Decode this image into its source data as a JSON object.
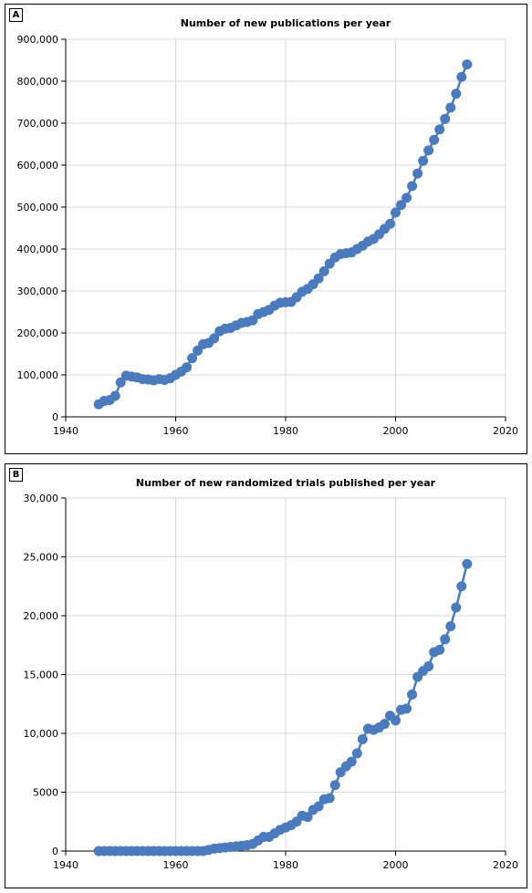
{
  "chart_data": [
    {
      "panel_label": "A",
      "type": "line",
      "title": "Number of new publications per year",
      "xlabel": "",
      "ylabel": "",
      "xlim": [
        1940,
        2020
      ],
      "ylim": [
        0,
        900000
      ],
      "x_ticks": [
        "1940",
        "1960",
        "1980",
        "2000",
        "2020"
      ],
      "y_ticks": [
        "0",
        "100,000",
        "200,000",
        "300,000",
        "400,000",
        "500,000",
        "600,000",
        "700,000",
        "800,000",
        "900,000"
      ],
      "grid": true,
      "legend": "none",
      "color": "#4a7bbf",
      "series": [
        {
          "x": [
            1946,
            1947,
            1948,
            1949,
            1950,
            1951,
            1952,
            1953,
            1954,
            1955,
            1956,
            1957,
            1958,
            1959,
            1960,
            1961,
            1962,
            1963,
            1964,
            1965,
            1966,
            1967,
            1968,
            1969,
            1970,
            1971,
            1972,
            1973,
            1974,
            1975,
            1976,
            1977,
            1978,
            1979,
            1980,
            1981,
            1982,
            1983,
            1984,
            1985,
            1986,
            1987,
            1988,
            1989,
            1990,
            1991,
            1992,
            1993,
            1994,
            1995,
            1996,
            1997,
            1998,
            1999,
            2000,
            2001,
            2002,
            2003,
            2004,
            2005,
            2006,
            2007,
            2008,
            2009,
            2010,
            2011,
            2012,
            2013
          ],
          "y": [
            30000,
            38000,
            40000,
            50000,
            82000,
            98000,
            96000,
            94000,
            90000,
            89000,
            87000,
            90000,
            88000,
            92000,
            100000,
            108000,
            118000,
            140000,
            158000,
            173000,
            176000,
            187000,
            204000,
            210000,
            212000,
            218000,
            224000,
            226000,
            230000,
            245000,
            250000,
            255000,
            265000,
            272000,
            273000,
            274000,
            285000,
            298000,
            305000,
            316000,
            330000,
            347000,
            365000,
            380000,
            388000,
            390000,
            392000,
            400000,
            408000,
            418000,
            424000,
            435000,
            448000,
            460000,
            487000,
            505000,
            522000,
            550000,
            580000,
            610000,
            635000,
            660000,
            685000,
            710000,
            737000,
            770000,
            810000,
            840000
          ]
        }
      ]
    },
    {
      "panel_label": "B",
      "type": "line",
      "title": "Number of new randomized trials published per year",
      "xlabel": "",
      "ylabel": "",
      "xlim": [
        1940,
        2020
      ],
      "ylim": [
        0,
        30000
      ],
      "x_ticks": [
        "1940",
        "1960",
        "1980",
        "2000",
        "2020"
      ],
      "y_ticks": [
        "0",
        "5000",
        "10,000",
        "15,000",
        "20,000",
        "25,000",
        "30,000"
      ],
      "grid": true,
      "legend": "none",
      "color": "#4a7bbf",
      "series": [
        {
          "x": [
            1946,
            1947,
            1948,
            1949,
            1950,
            1951,
            1952,
            1953,
            1954,
            1955,
            1956,
            1957,
            1958,
            1959,
            1960,
            1961,
            1962,
            1963,
            1964,
            1965,
            1966,
            1967,
            1968,
            1969,
            1970,
            1971,
            1972,
            1973,
            1974,
            1975,
            1976,
            1977,
            1978,
            1979,
            1980,
            1981,
            1982,
            1983,
            1984,
            1985,
            1986,
            1987,
            1988,
            1989,
            1990,
            1991,
            1992,
            1993,
            1994,
            1995,
            1996,
            1997,
            1998,
            1999,
            2000,
            2001,
            2002,
            2003,
            2004,
            2005,
            2006,
            2007,
            2008,
            2009,
            2010,
            2011,
            2012,
            2013
          ],
          "y": [
            0,
            0,
            0,
            0,
            0,
            0,
            0,
            0,
            0,
            0,
            0,
            0,
            0,
            0,
            0,
            0,
            0,
            0,
            0,
            0,
            100,
            200,
            250,
            300,
            350,
            400,
            450,
            500,
            600,
            900,
            1200,
            1200,
            1500,
            1800,
            2000,
            2200,
            2500,
            3000,
            2900,
            3500,
            3800,
            4400,
            4500,
            5600,
            6700,
            7200,
            7600,
            8300,
            9500,
            10400,
            10300,
            10500,
            10800,
            11500,
            11100,
            12000,
            12100,
            13300,
            14800,
            15300,
            15700,
            16900,
            17100,
            18000,
            19100,
            20700,
            22500,
            24400
          ]
        }
      ]
    }
  ]
}
